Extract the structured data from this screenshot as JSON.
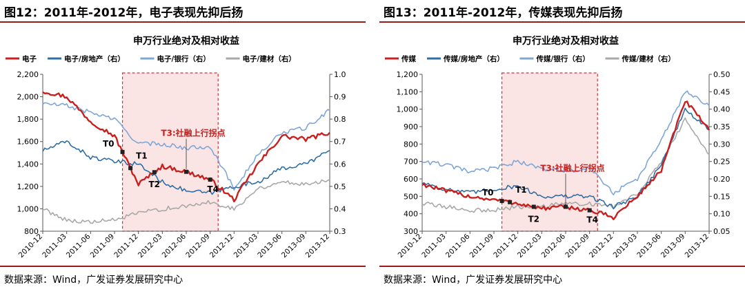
{
  "figures": [
    {
      "fig_title": "图12：2011年-2012年，电子表现先抑后扬",
      "source": "数据来源：Wind，广发证券发展研究中心"
    },
    {
      "fig_title": "图13：2011年-2012年，传媒表现先抑后扬",
      "source": "数据来源：Wind，广发证券发展研究中心"
    }
  ],
  "chart_data": [
    {
      "type": "line",
      "title": "申万行业绝对及相对收益",
      "x": [
        "2010-12",
        "2011-03",
        "2011-06",
        "2011-09",
        "2011-12",
        "2012-03",
        "2012-06",
        "2012-09",
        "2012-12",
        "2013-03",
        "2013-06",
        "2013-09",
        "2013-12"
      ],
      "ylim_left": [
        800,
        2200
      ],
      "yticks_left": [
        "800",
        "1,000",
        "1,200",
        "1,400",
        "1,600",
        "1,800",
        "2,000",
        "2,200"
      ],
      "ylim_right": [
        0.3,
        1.0
      ],
      "yticks_right": [
        "0.3",
        "0.4",
        "0.5",
        "0.6",
        "0.7",
        "0.8",
        "0.9",
        "1.0"
      ],
      "series": [
        {
          "name": "电子",
          "axis": "left",
          "color": "#c8201e",
          "values": [
            2050,
            2000,
            1780,
            1650,
            1220,
            1380,
            1330,
            1260,
            1080,
            1400,
            1650,
            1620,
            1680
          ]
        },
        {
          "name": "电子/房地产（右）",
          "axis": "right",
          "color": "#2f6ea5",
          "values": [
            0.66,
            0.7,
            0.63,
            0.61,
            0.6,
            0.52,
            0.48,
            0.47,
            0.5,
            0.52,
            0.58,
            0.6,
            0.66
          ]
        },
        {
          "name": "电子/银行（右）",
          "axis": "right",
          "color": "#7ea6d6",
          "values": [
            0.87,
            0.86,
            0.83,
            0.8,
            0.69,
            0.69,
            0.67,
            0.68,
            0.49,
            0.64,
            0.74,
            0.76,
            0.84
          ]
        },
        {
          "name": "电子/建材（右）",
          "axis": "right",
          "color": "#a8a8a8",
          "values": [
            0.4,
            0.35,
            0.34,
            0.35,
            0.38,
            0.4,
            0.41,
            0.43,
            0.4,
            0.49,
            0.52,
            0.51,
            0.53
          ]
        }
      ],
      "highlight": {
        "from": "2011-10",
        "to": "2012-10"
      },
      "annotations": [
        {
          "label": "T0",
          "x": "2011-10",
          "series": 0
        },
        {
          "label": "T1",
          "x": "2011-11",
          "series": 0
        },
        {
          "label": "T2",
          "x": "2012-02",
          "series": 0
        },
        {
          "label": "T3:社融上行拐点",
          "x": "2012-06",
          "series": 0
        },
        {
          "label": "T4",
          "x": "2012-09",
          "series": 0
        }
      ]
    },
    {
      "type": "line",
      "title": "申万行业绝对及相对收益",
      "x": [
        "2010-12",
        "2011-03",
        "2011-06",
        "2011-09",
        "2011-12",
        "2012-03",
        "2012-06",
        "2012-09",
        "2012-12",
        "2013-03",
        "2013-06",
        "2013-09",
        "2013-12"
      ],
      "ylim_left": [
        300,
        1200
      ],
      "yticks_left": [
        "300",
        "400",
        "500",
        "600",
        "700",
        "800",
        "900",
        "1,000",
        "1,100",
        "1,200"
      ],
      "ylim_right": [
        0.05,
        0.5
      ],
      "yticks_right": [
        "0.05",
        "0.10",
        "0.15",
        "0.20",
        "0.25",
        "0.30",
        "0.35",
        "0.40",
        "0.45",
        "0.50"
      ],
      "series": [
        {
          "name": "传媒",
          "axis": "left",
          "color": "#c8201e",
          "values": [
            570,
            530,
            500,
            480,
            460,
            430,
            440,
            420,
            380,
            500,
            650,
            1050,
            880
          ]
        },
        {
          "name": "传媒/房地产（右）",
          "axis": "right",
          "color": "#2f6ea5",
          "values": [
            0.19,
            0.17,
            0.16,
            0.17,
            0.18,
            0.15,
            0.15,
            0.15,
            0.12,
            0.15,
            0.24,
            0.4,
            0.34
          ]
        },
        {
          "name": "传媒/银行（右）",
          "axis": "right",
          "color": "#7ea6d6",
          "values": [
            0.25,
            0.24,
            0.22,
            0.23,
            0.25,
            0.23,
            0.22,
            0.23,
            0.16,
            0.2,
            0.31,
            0.45,
            0.41
          ]
        },
        {
          "name": "传媒/建材（右）",
          "axis": "right",
          "color": "#a8a8a8",
          "values": [
            0.13,
            0.12,
            0.11,
            0.11,
            0.12,
            0.12,
            0.13,
            0.13,
            0.12,
            0.16,
            0.25,
            0.37,
            0.27
          ]
        }
      ],
      "highlight": {
        "from": "2011-10",
        "to": "2012-10"
      },
      "annotations": [
        {
          "label": "T0",
          "x": "2011-10",
          "series": 0
        },
        {
          "label": "T1",
          "x": "2011-11",
          "series": 0
        },
        {
          "label": "T2",
          "x": "2012-02",
          "series": 0
        },
        {
          "label": "T3:社融上行拐点",
          "x": "2012-06",
          "series": 0
        },
        {
          "label": "T4",
          "x": "2012-09",
          "series": 0
        }
      ]
    }
  ]
}
